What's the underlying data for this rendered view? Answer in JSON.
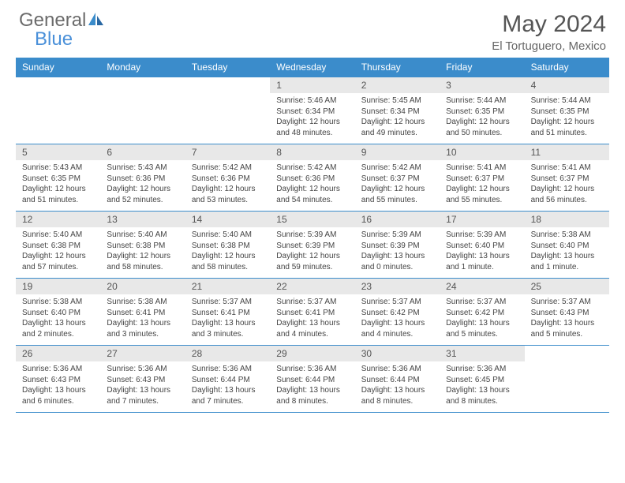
{
  "logo": {
    "text1": "General",
    "text2": "Blue"
  },
  "title": "May 2024",
  "location": "El Tortuguero, Mexico",
  "colors": {
    "header_bg": "#3b8ccb",
    "header_text": "#ffffff",
    "daynum_bg": "#e8e8e8",
    "border": "#3b8ccb",
    "body_text": "#444444",
    "title_text": "#555555",
    "logo_gray": "#6b6b6b",
    "logo_blue": "#4a90d9"
  },
  "weekdays": [
    "Sunday",
    "Monday",
    "Tuesday",
    "Wednesday",
    "Thursday",
    "Friday",
    "Saturday"
  ],
  "weeks": [
    [
      {
        "day": "",
        "lines": []
      },
      {
        "day": "",
        "lines": []
      },
      {
        "day": "",
        "lines": []
      },
      {
        "day": "1",
        "lines": [
          "Sunrise: 5:46 AM",
          "Sunset: 6:34 PM",
          "Daylight: 12 hours",
          "and 48 minutes."
        ]
      },
      {
        "day": "2",
        "lines": [
          "Sunrise: 5:45 AM",
          "Sunset: 6:34 PM",
          "Daylight: 12 hours",
          "and 49 minutes."
        ]
      },
      {
        "day": "3",
        "lines": [
          "Sunrise: 5:44 AM",
          "Sunset: 6:35 PM",
          "Daylight: 12 hours",
          "and 50 minutes."
        ]
      },
      {
        "day": "4",
        "lines": [
          "Sunrise: 5:44 AM",
          "Sunset: 6:35 PM",
          "Daylight: 12 hours",
          "and 51 minutes."
        ]
      }
    ],
    [
      {
        "day": "5",
        "lines": [
          "Sunrise: 5:43 AM",
          "Sunset: 6:35 PM",
          "Daylight: 12 hours",
          "and 51 minutes."
        ]
      },
      {
        "day": "6",
        "lines": [
          "Sunrise: 5:43 AM",
          "Sunset: 6:36 PM",
          "Daylight: 12 hours",
          "and 52 minutes."
        ]
      },
      {
        "day": "7",
        "lines": [
          "Sunrise: 5:42 AM",
          "Sunset: 6:36 PM",
          "Daylight: 12 hours",
          "and 53 minutes."
        ]
      },
      {
        "day": "8",
        "lines": [
          "Sunrise: 5:42 AM",
          "Sunset: 6:36 PM",
          "Daylight: 12 hours",
          "and 54 minutes."
        ]
      },
      {
        "day": "9",
        "lines": [
          "Sunrise: 5:42 AM",
          "Sunset: 6:37 PM",
          "Daylight: 12 hours",
          "and 55 minutes."
        ]
      },
      {
        "day": "10",
        "lines": [
          "Sunrise: 5:41 AM",
          "Sunset: 6:37 PM",
          "Daylight: 12 hours",
          "and 55 minutes."
        ]
      },
      {
        "day": "11",
        "lines": [
          "Sunrise: 5:41 AM",
          "Sunset: 6:37 PM",
          "Daylight: 12 hours",
          "and 56 minutes."
        ]
      }
    ],
    [
      {
        "day": "12",
        "lines": [
          "Sunrise: 5:40 AM",
          "Sunset: 6:38 PM",
          "Daylight: 12 hours",
          "and 57 minutes."
        ]
      },
      {
        "day": "13",
        "lines": [
          "Sunrise: 5:40 AM",
          "Sunset: 6:38 PM",
          "Daylight: 12 hours",
          "and 58 minutes."
        ]
      },
      {
        "day": "14",
        "lines": [
          "Sunrise: 5:40 AM",
          "Sunset: 6:38 PM",
          "Daylight: 12 hours",
          "and 58 minutes."
        ]
      },
      {
        "day": "15",
        "lines": [
          "Sunrise: 5:39 AM",
          "Sunset: 6:39 PM",
          "Daylight: 12 hours",
          "and 59 minutes."
        ]
      },
      {
        "day": "16",
        "lines": [
          "Sunrise: 5:39 AM",
          "Sunset: 6:39 PM",
          "Daylight: 13 hours",
          "and 0 minutes."
        ]
      },
      {
        "day": "17",
        "lines": [
          "Sunrise: 5:39 AM",
          "Sunset: 6:40 PM",
          "Daylight: 13 hours",
          "and 1 minute."
        ]
      },
      {
        "day": "18",
        "lines": [
          "Sunrise: 5:38 AM",
          "Sunset: 6:40 PM",
          "Daylight: 13 hours",
          "and 1 minute."
        ]
      }
    ],
    [
      {
        "day": "19",
        "lines": [
          "Sunrise: 5:38 AM",
          "Sunset: 6:40 PM",
          "Daylight: 13 hours",
          "and 2 minutes."
        ]
      },
      {
        "day": "20",
        "lines": [
          "Sunrise: 5:38 AM",
          "Sunset: 6:41 PM",
          "Daylight: 13 hours",
          "and 3 minutes."
        ]
      },
      {
        "day": "21",
        "lines": [
          "Sunrise: 5:37 AM",
          "Sunset: 6:41 PM",
          "Daylight: 13 hours",
          "and 3 minutes."
        ]
      },
      {
        "day": "22",
        "lines": [
          "Sunrise: 5:37 AM",
          "Sunset: 6:41 PM",
          "Daylight: 13 hours",
          "and 4 minutes."
        ]
      },
      {
        "day": "23",
        "lines": [
          "Sunrise: 5:37 AM",
          "Sunset: 6:42 PM",
          "Daylight: 13 hours",
          "and 4 minutes."
        ]
      },
      {
        "day": "24",
        "lines": [
          "Sunrise: 5:37 AM",
          "Sunset: 6:42 PM",
          "Daylight: 13 hours",
          "and 5 minutes."
        ]
      },
      {
        "day": "25",
        "lines": [
          "Sunrise: 5:37 AM",
          "Sunset: 6:43 PM",
          "Daylight: 13 hours",
          "and 5 minutes."
        ]
      }
    ],
    [
      {
        "day": "26",
        "lines": [
          "Sunrise: 5:36 AM",
          "Sunset: 6:43 PM",
          "Daylight: 13 hours",
          "and 6 minutes."
        ]
      },
      {
        "day": "27",
        "lines": [
          "Sunrise: 5:36 AM",
          "Sunset: 6:43 PM",
          "Daylight: 13 hours",
          "and 7 minutes."
        ]
      },
      {
        "day": "28",
        "lines": [
          "Sunrise: 5:36 AM",
          "Sunset: 6:44 PM",
          "Daylight: 13 hours",
          "and 7 minutes."
        ]
      },
      {
        "day": "29",
        "lines": [
          "Sunrise: 5:36 AM",
          "Sunset: 6:44 PM",
          "Daylight: 13 hours",
          "and 8 minutes."
        ]
      },
      {
        "day": "30",
        "lines": [
          "Sunrise: 5:36 AM",
          "Sunset: 6:44 PM",
          "Daylight: 13 hours",
          "and 8 minutes."
        ]
      },
      {
        "day": "31",
        "lines": [
          "Sunrise: 5:36 AM",
          "Sunset: 6:45 PM",
          "Daylight: 13 hours",
          "and 8 minutes."
        ]
      },
      {
        "day": "",
        "lines": []
      }
    ]
  ]
}
